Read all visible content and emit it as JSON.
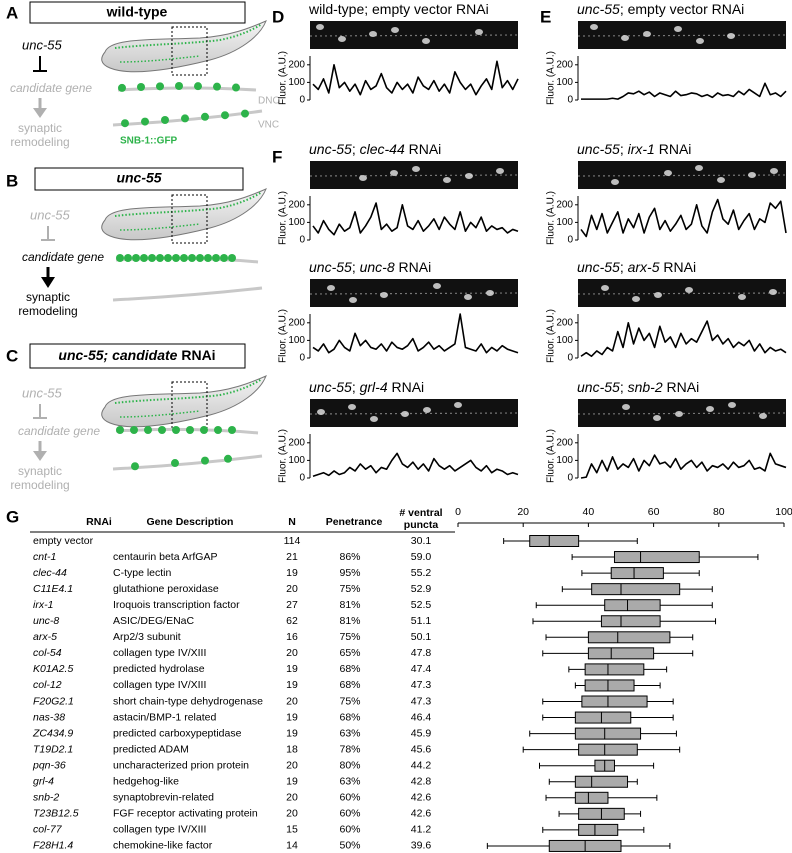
{
  "panel_a": {
    "letter": "A",
    "title": "wild-type",
    "gene": "unc-55",
    "candidate": "candidate gene",
    "outcome": [
      "synaptic",
      "remodeling"
    ],
    "dnc": "DNC",
    "vnc": "VNC",
    "marker": "SNB-1::GFP"
  },
  "panel_b": {
    "letter": "B",
    "title": "unc-55",
    "gene": "unc-55",
    "candidate": "candidate gene",
    "outcome": [
      "synaptic",
      "remodeling"
    ]
  },
  "panel_c": {
    "letter": "C",
    "title": [
      {
        "text": "unc-55; candidate",
        "italic": true
      },
      {
        "text": " RNAi",
        "italic": false
      }
    ],
    "gene": "unc-55",
    "candidate": "candidate gene",
    "outcome": [
      "synaptic",
      "remodeling"
    ]
  },
  "trace_axis": {
    "ylabel": "Fluor. (A.U.)",
    "ylim": [
      0,
      250
    ],
    "yticks": [
      0,
      100,
      200
    ]
  },
  "traces": [
    {
      "letter": "D",
      "title": [
        {
          "text": "wild-type; empty vector RNAi",
          "italic": false
        }
      ],
      "values": [
        90,
        60,
        120,
        40,
        200,
        70,
        100,
        50,
        90,
        30,
        110,
        60,
        80,
        150,
        70,
        40,
        100,
        60,
        90,
        40,
        130,
        80,
        60,
        110,
        50,
        90,
        40,
        160,
        100,
        60,
        90,
        30,
        80,
        120,
        60,
        220,
        70,
        110,
        60,
        120
      ]
    },
    {
      "letter": "E",
      "title": [
        {
          "text": "unc-55",
          "italic": true
        },
        {
          "text": "; empty vector RNAi",
          "italic": false
        }
      ],
      "values": [
        5,
        5,
        5,
        5,
        5,
        5,
        10,
        5,
        20,
        40,
        35,
        50,
        30,
        45,
        20,
        40,
        30,
        20,
        50,
        25,
        30,
        40,
        35,
        20,
        30,
        15,
        40,
        25,
        30,
        20,
        50,
        30,
        60,
        40,
        20,
        95,
        30,
        40,
        20,
        50
      ]
    },
    {
      "letter": "F",
      "title": [
        {
          "text": "unc-55",
          "italic": true
        },
        {
          "text": "; ",
          "italic": false
        },
        {
          "text": "clec-44",
          "italic": true
        },
        {
          "text": " RNAi",
          "italic": false
        }
      ],
      "values": [
        80,
        40,
        110,
        60,
        30,
        90,
        50,
        70,
        160,
        40,
        80,
        130,
        210,
        60,
        90,
        50,
        70,
        200,
        80,
        60,
        110,
        50,
        80,
        120,
        60,
        130,
        90,
        60,
        160,
        50,
        100,
        70,
        130,
        50,
        80,
        60,
        70,
        40,
        60,
        50
      ]
    },
    {
      "title": [
        {
          "text": "unc-55",
          "italic": true
        },
        {
          "text": "; ",
          "italic": false
        },
        {
          "text": "irx-1",
          "italic": true
        },
        {
          "text": " RNAi",
          "italic": false
        }
      ],
      "values": [
        60,
        20,
        140,
        60,
        150,
        40,
        100,
        160,
        40,
        120,
        70,
        150,
        40,
        130,
        180,
        60,
        110,
        50,
        90,
        140,
        60,
        90,
        200,
        80,
        40,
        160,
        230,
        120,
        90,
        170,
        60,
        110,
        150,
        60,
        120,
        100,
        210,
        180,
        220,
        40
      ]
    },
    {
      "title": [
        {
          "text": "unc-55",
          "italic": true
        },
        {
          "text": "; ",
          "italic": false
        },
        {
          "text": "unc-8",
          "italic": true
        },
        {
          "text": " RNAi",
          "italic": false
        }
      ],
      "values": [
        60,
        40,
        80,
        30,
        50,
        100,
        60,
        40,
        140,
        70,
        100,
        60,
        50,
        80,
        40,
        90,
        60,
        50,
        70,
        110,
        40,
        60,
        90,
        50,
        70,
        40,
        60,
        80,
        250,
        60,
        50,
        40,
        80,
        30,
        60,
        40,
        70,
        50,
        40,
        30
      ]
    },
    {
      "title": [
        {
          "text": "unc-55",
          "italic": true
        },
        {
          "text": "; ",
          "italic": false
        },
        {
          "text": "arx-5",
          "italic": true
        },
        {
          "text": " RNAi",
          "italic": false
        }
      ],
      "values": [
        10,
        30,
        10,
        40,
        20,
        60,
        40,
        150,
        60,
        200,
        80,
        170,
        100,
        140,
        60,
        180,
        90,
        120,
        60,
        140,
        80,
        110,
        90,
        150,
        210,
        100,
        130,
        80,
        110,
        60,
        90,
        70,
        100,
        40,
        80,
        30,
        60,
        40,
        50,
        30
      ]
    },
    {
      "title": [
        {
          "text": "unc-55",
          "italic": true
        },
        {
          "text": "; ",
          "italic": false
        },
        {
          "text": "grl-4",
          "italic": true
        },
        {
          "text": " RNAi",
          "italic": false
        }
      ],
      "values": [
        10,
        20,
        30,
        15,
        40,
        20,
        30,
        60,
        40,
        80,
        50,
        70,
        30,
        60,
        50,
        100,
        140,
        80,
        60,
        90,
        50,
        80,
        40,
        110,
        70,
        50,
        70,
        40,
        60,
        80,
        100,
        60,
        40,
        70,
        30,
        50,
        40,
        20,
        30,
        20
      ]
    },
    {
      "title": [
        {
          "text": "unc-55",
          "italic": true
        },
        {
          "text": "; ",
          "italic": false
        },
        {
          "text": "snb-2",
          "italic": true
        },
        {
          "text": " RNAi",
          "italic": false
        }
      ],
      "values": [
        0,
        5,
        80,
        30,
        100,
        40,
        120,
        50,
        80,
        60,
        110,
        40,
        100,
        70,
        130,
        80,
        90,
        60,
        110,
        50,
        80,
        100,
        60,
        90,
        40,
        70,
        60,
        80,
        50,
        90,
        60,
        70,
        100,
        50,
        60,
        40,
        140,
        80,
        70,
        60
      ]
    }
  ],
  "panel_g": {
    "letter": "G",
    "columns": [
      "RNAi",
      "Gene Description",
      "N",
      "Penetrance"
    ],
    "puncta_header": [
      "# ventral",
      "puncta"
    ],
    "rows": [
      {
        "rnai": "empty vector",
        "n": "114",
        "puncta": "30.1"
      },
      {
        "rnai": "cnt-1",
        "description": "centaurin beta ArfGAP",
        "n": "21",
        "penetrance": "86%",
        "puncta": "59.0"
      },
      {
        "rnai": "clec-44",
        "description": "C-type lectin",
        "n": "19",
        "penetrance": "95%",
        "puncta": "55.2"
      },
      {
        "rnai": "C11E4.1",
        "description": "glutathione peroxidase",
        "n": "20",
        "penetrance": "75%",
        "puncta": "52.9"
      },
      {
        "rnai": "irx-1",
        "description": "Iroquois transcription factor",
        "n": "27",
        "penetrance": "81%",
        "puncta": "52.5"
      },
      {
        "rnai": "unc-8",
        "description": "ASIC/DEG/ENaC",
        "n": "62",
        "penetrance": "81%",
        "puncta": "51.1"
      },
      {
        "rnai": "arx-5",
        "description": "Arp2/3 subunit",
        "n": "16",
        "penetrance": "75%",
        "puncta": "50.1"
      },
      {
        "rnai": "col-54",
        "description": "collagen type IV/XIII",
        "n": "20",
        "penetrance": "65%",
        "puncta": "47.8"
      },
      {
        "rnai": "K01A2.5",
        "description": "predicted hydrolase",
        "n": "19",
        "penetrance": "68%",
        "puncta": "47.4"
      },
      {
        "rnai": "col-12",
        "description": "collagen type IV/XIII",
        "n": "19",
        "penetrance": "68%",
        "puncta": "47.3"
      },
      {
        "rnai": "F20G2.1",
        "description": "short chain-type dehydrogenase",
        "n": "20",
        "penetrance": "75%",
        "puncta": "47.3"
      },
      {
        "rnai": "nas-38",
        "description": "astacin/BMP-1 related",
        "n": "19",
        "penetrance": "68%",
        "puncta": "46.4"
      },
      {
        "rnai": "ZC434.9",
        "description": "predicted carboxypeptidase",
        "n": "19",
        "penetrance": "63%",
        "puncta": "45.9"
      },
      {
        "rnai": "T19D2.1",
        "description": "predicted ADAM",
        "n": "18",
        "penetrance": "78%",
        "puncta": "45.6"
      },
      {
        "rnai": "pqn-36",
        "description": "uncharacterized prion protein",
        "n": "20",
        "penetrance": "80%",
        "puncta": "44.2"
      },
      {
        "rnai": "grl-4",
        "description": "hedgehog-like",
        "n": "19",
        "penetrance": "63%",
        "puncta": "42.8"
      },
      {
        "rnai": "snb-2",
        "description": "synaptobrevin-related",
        "n": "20",
        "penetrance": "60%",
        "puncta": "42.6"
      },
      {
        "rnai": "T23B12.5",
        "description": "FGF receptor activating protein",
        "n": "20",
        "penetrance": "60%",
        "puncta": "42.6"
      },
      {
        "rnai": "col-77",
        "description": "collagen type IV/XIII",
        "n": "15",
        "penetrance": "60%",
        "puncta": "41.2"
      },
      {
        "rnai": "F28H1.4",
        "description": "chemokine-like factor",
        "n": "14",
        "penetrance": "50%",
        "puncta": "39.6"
      }
    ]
  },
  "chart_data": {
    "type": "box",
    "color": "#aaaaaa",
    "xlim": [
      0,
      100
    ],
    "xticks": [
      0,
      20,
      40,
      60,
      80,
      100
    ],
    "boxes": [
      {
        "min": 14,
        "q1": 22,
        "median": 28,
        "q3": 37,
        "max": 55
      },
      {
        "min": 35,
        "q1": 48,
        "median": 56,
        "q3": 74,
        "max": 92
      },
      {
        "min": 38,
        "q1": 47,
        "median": 54,
        "q3": 63,
        "max": 74
      },
      {
        "min": 32,
        "q1": 41,
        "median": 50,
        "q3": 68,
        "max": 78
      },
      {
        "min": 24,
        "q1": 45,
        "median": 52,
        "q3": 62,
        "max": 78
      },
      {
        "min": 23,
        "q1": 44,
        "median": 50,
        "q3": 62,
        "max": 79
      },
      {
        "min": 27,
        "q1": 40,
        "median": 49,
        "q3": 65,
        "max": 72
      },
      {
        "min": 26,
        "q1": 40,
        "median": 47,
        "q3": 60,
        "max": 72
      },
      {
        "min": 34,
        "q1": 39,
        "median": 46,
        "q3": 57,
        "max": 64
      },
      {
        "min": 36,
        "q1": 39,
        "median": 46,
        "q3": 54,
        "max": 62
      },
      {
        "min": 26,
        "q1": 38,
        "median": 46,
        "q3": 58,
        "max": 66
      },
      {
        "min": 26,
        "q1": 36,
        "median": 44,
        "q3": 53,
        "max": 66
      },
      {
        "min": 22,
        "q1": 36,
        "median": 45,
        "q3": 56,
        "max": 67
      },
      {
        "min": 20,
        "q1": 37,
        "median": 45,
        "q3": 55,
        "max": 68
      },
      {
        "min": 25,
        "q1": 42,
        "median": 45,
        "q3": 48,
        "max": 60
      },
      {
        "min": 28,
        "q1": 36,
        "median": 41,
        "q3": 52,
        "max": 55
      },
      {
        "min": 27,
        "q1": 36,
        "median": 40,
        "q3": 46,
        "max": 61
      },
      {
        "min": 31,
        "q1": 37,
        "median": 44,
        "q3": 51,
        "max": 56
      },
      {
        "min": 26,
        "q1": 37,
        "median": 42,
        "q3": 49,
        "max": 57
      },
      {
        "min": 9,
        "q1": 28,
        "median": 39,
        "q3": 50,
        "max": 65
      }
    ]
  }
}
